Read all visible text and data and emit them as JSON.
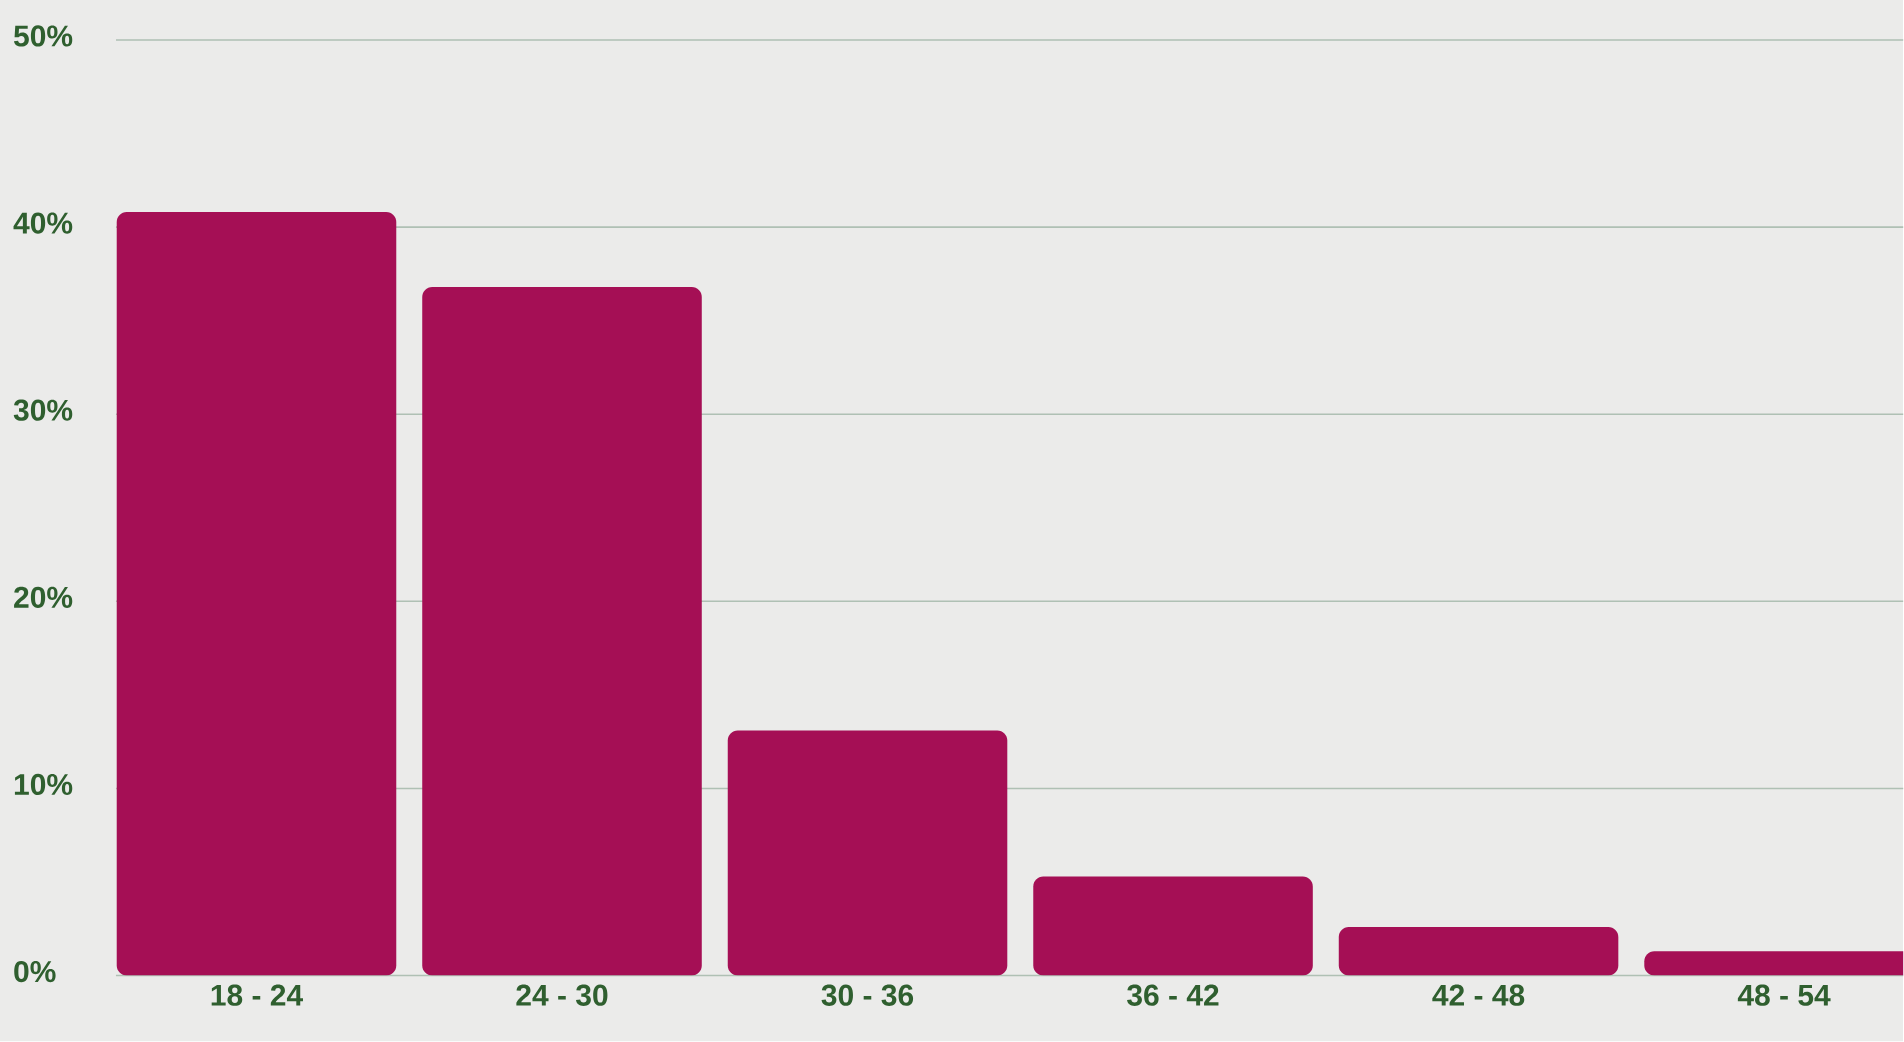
{
  "chart_data": {
    "type": "bar",
    "categories": [
      "18 - 24",
      "24 - 30",
      "30 - 36",
      "36 - 42",
      "42 - 48",
      "48 - 54"
    ],
    "values": [
      40.8,
      36.8,
      13.1,
      5.3,
      2.6,
      1.3
    ],
    "color": "#a50f55",
    "ylim": [
      0,
      50
    ],
    "yticks": [
      {
        "value": 0,
        "label": "0%"
      },
      {
        "value": 10,
        "label": "10%"
      },
      {
        "value": 20,
        "label": "20%"
      },
      {
        "value": 30,
        "label": "30%"
      },
      {
        "value": 40,
        "label": "40%"
      },
      {
        "value": 50,
        "label": "50%"
      }
    ],
    "grid": "y"
  }
}
